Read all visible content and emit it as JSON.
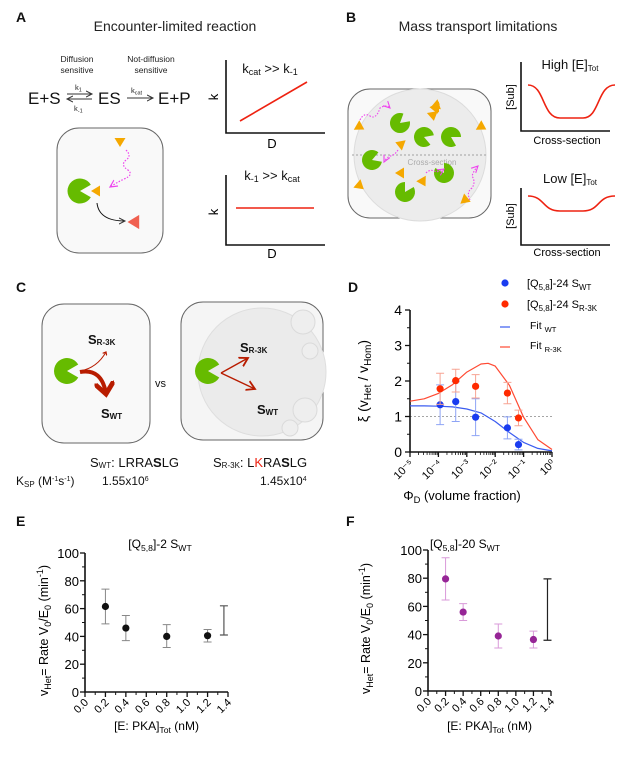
{
  "panels": {
    "A": {
      "label": "A",
      "title": "Encounter-limited reaction",
      "diffusion_sensitive": [
        "Diffusion",
        "sensitive"
      ],
      "not_diffusion_sensitive": [
        "Not-diffusion",
        "sensitive"
      ],
      "reactants": "E+S",
      "complex": "ES",
      "products": "E+P",
      "k1": "k",
      "k1_sub": "1",
      "k_minus1": "k",
      "k_minus1_sub": "-1",
      "kcat": "k",
      "kcat_sub": "cat",
      "plot_top": {
        "title_k": "k",
        "title_sub1": "cat",
        "title_mid": " >> k",
        "title_sub2": "-1",
        "ylabel": "k",
        "xlabel": "D"
      },
      "plot_bottom": {
        "title_k": "k",
        "title_sub1": "-1",
        "title_mid": " >> k",
        "title_sub2": "cat",
        "ylabel": "k",
        "xlabel": "D"
      }
    },
    "B": {
      "label": "B",
      "title": "Mass transport limitations",
      "cross_section_label": "Cross-section",
      "plot_high": {
        "title": "High [E]",
        "title_sub": "Tot",
        "ylabel": "[Sub]",
        "xlabel": "Cross-section"
      },
      "plot_low": {
        "title": "Low [E]",
        "title_sub": "Tot",
        "ylabel": "[Sub]",
        "xlabel": "Cross-section"
      }
    },
    "C": {
      "label": "C",
      "s_r3k": "S",
      "s_r3k_sub": "R-3K",
      "s_wt": "S",
      "s_wt_sub": "WT",
      "vs": "vs",
      "seq_wt_prefix": "S",
      "seq_wt_sub": "WT",
      "seq_wt_colon": ": ",
      "seq_wt_a": "LRRA",
      "seq_wt_b": "S",
      "seq_wt_c": "LG",
      "seq_r3k_prefix": "S",
      "seq_r3k_sub": "R-3K",
      "seq_r3k_colon": ": ",
      "seq_r3k_a": "L",
      "seq_r3k_k": "K",
      "seq_r3k_b": "RA",
      "seq_r3k_s": "S",
      "seq_r3k_c": "LG",
      "ksp_label": "K",
      "ksp_sub": "SP",
      "ksp_units": " (M",
      "ksp_units_sup1": "-1",
      "ksp_units_s": "s",
      "ksp_units_sup2": "-1",
      "ksp_units_end": ")",
      "ksp_wt": "1.55x10",
      "ksp_wt_exp": "6",
      "ksp_r3k": "1.45x10",
      "ksp_r3k_exp": "4"
    }
  },
  "colors": {
    "enzyme": "#66bb00",
    "substrate": "#f5a800",
    "product": "#f06050",
    "diffusion": "#ee44ee",
    "curve": "#ee2211",
    "arrow": "#b81c00",
    "wt": "#1a3cf0",
    "r3k": "#ff2a00",
    "purple": "#962596"
  },
  "chart_data": [
    {
      "panel": "D",
      "label": "D",
      "type": "scatter",
      "xscale": "log",
      "xlim_log10": [
        -5,
        0
      ],
      "ylim": [
        0,
        4
      ],
      "yticks": [
        "0",
        "1",
        "2",
        "3",
        "4"
      ],
      "xticks": [
        "10⁻⁵",
        "10⁻⁴",
        "10⁻³",
        "10⁻²",
        "10⁻¹",
        "10⁰"
      ],
      "ylabel": {
        "a": "ξ (v",
        "b": "Het",
        "c": " / v",
        "d": "Hom",
        "e": ")"
      },
      "xlabel": {
        "a": "Φ",
        "b": "D",
        "c": " (volume fraction)"
      },
      "reference_line_y": 1,
      "series": [
        {
          "name": {
            "a": "[Q",
            "b": "5,8",
            "c": "]-24 S",
            "d": "WT"
          },
          "color": "#1a3cf0",
          "err_color": "#8ea4f5",
          "log10_x": [
            -3.94,
            -3.39,
            -2.69,
            -1.57,
            -1.18
          ],
          "y": [
            1.33,
            1.42,
            0.98,
            0.68,
            0.21
          ],
          "err": [
            0.56,
            0.56,
            0.52,
            0.31,
            0.15
          ]
        },
        {
          "name": {
            "a": "[Q",
            "b": "5,8",
            "c": "]-24 S",
            "d": "R-3K"
          },
          "color": "#ff2a00",
          "err_color": "#f7a493",
          "log10_x": [
            -3.94,
            -3.39,
            -2.69,
            -1.57,
            -1.18
          ],
          "y": [
            1.78,
            2.01,
            1.85,
            1.66,
            0.96
          ],
          "err": [
            0.44,
            0.32,
            0.33,
            0.3,
            0.22
          ]
        }
      ],
      "fits": [
        {
          "name": {
            "a": "Fit ",
            "b": "WT"
          },
          "color": "#3b5cf0",
          "log10_x": [
            -5,
            -4.5,
            -4,
            -3.5,
            -3,
            -2.5,
            -2,
            -1.5,
            -1,
            -0.5,
            0
          ],
          "y": [
            1.3,
            1.3,
            1.29,
            1.27,
            1.21,
            1.1,
            0.86,
            0.55,
            0.27,
            0.1,
            0.03
          ]
        },
        {
          "name": {
            "a": "Fit ",
            "b": "R-3K"
          },
          "color": "#ff4a33",
          "log10_x": [
            -5,
            -4.5,
            -4,
            -3.5,
            -3,
            -2.5,
            -2.25,
            -2,
            -1.5,
            -1,
            -0.5,
            0
          ],
          "y": [
            1.43,
            1.5,
            1.65,
            1.9,
            2.25,
            2.48,
            2.5,
            2.42,
            1.88,
            0.98,
            0.35,
            0.07
          ]
        }
      ]
    },
    {
      "panel": "E",
      "label": "E",
      "type": "scatter",
      "title": {
        "a": "[Q",
        "b": "5,8",
        "c": "]-2 S",
        "d": "WT"
      },
      "xlim": [
        0,
        1.4
      ],
      "ylim": [
        0,
        100
      ],
      "xticks": [
        "0.0",
        "0.2",
        "0.4",
        "0.6",
        "0.8",
        "1.0",
        "1.2",
        "1.4"
      ],
      "yticks": [
        "0",
        "20",
        "40",
        "60",
        "80",
        "100"
      ],
      "ylabel": {
        "a": "v",
        "b": "Het",
        "c": "= Rate V",
        "d": "0",
        "e": "/E",
        "f": "0",
        "g": " (min",
        "h": "-1",
        "i": ")"
      },
      "xlabel": {
        "a": "[E: PKA]",
        "b": "Tot",
        "c": " (nM)"
      },
      "color": "#111111",
      "err_color": "#888888",
      "x": [
        0.2,
        0.4,
        0.8,
        1.2
      ],
      "y": [
        61.5,
        46,
        40,
        40.5
      ],
      "err_low": [
        49,
        37,
        32,
        36
      ],
      "err_high": [
        74,
        55,
        48.5,
        45
      ],
      "extra_bar": {
        "x": 1.36,
        "low": 41,
        "high": 62,
        "color": "#555555"
      }
    },
    {
      "panel": "F",
      "label": "F",
      "type": "scatter",
      "title": {
        "a": "[Q",
        "b": "5,8",
        "c": "]-20 S",
        "d": "WT"
      },
      "xlim": [
        0,
        1.4
      ],
      "ylim": [
        0,
        100
      ],
      "xticks": [
        "0.0",
        "0.2",
        "0.4",
        "0.6",
        "0.8",
        "1.0",
        "1.2",
        "1.4"
      ],
      "yticks": [
        "0",
        "20",
        "40",
        "60",
        "80",
        "100"
      ],
      "ylabel": {
        "a": "v",
        "b": "Het",
        "c": "= Rate V",
        "d": "0",
        "e": "/E",
        "f": "0",
        "g": " (min",
        "h": "-1",
        "i": ")"
      },
      "xlabel": {
        "a": "[E: PKA]",
        "b": "Tot",
        "c": " (nM)"
      },
      "color": "#962596",
      "err_color": "#d99ad9",
      "x": [
        0.2,
        0.4,
        0.8,
        1.2
      ],
      "y": [
        79.5,
        56,
        39,
        36.5
      ],
      "err_low": [
        64.5,
        50,
        30.5,
        30.5
      ],
      "err_high": [
        94.5,
        62,
        47.5,
        42.5
      ],
      "extra_bar": {
        "x": 1.36,
        "low": 36,
        "high": 79.5,
        "color": "#222222"
      }
    }
  ]
}
